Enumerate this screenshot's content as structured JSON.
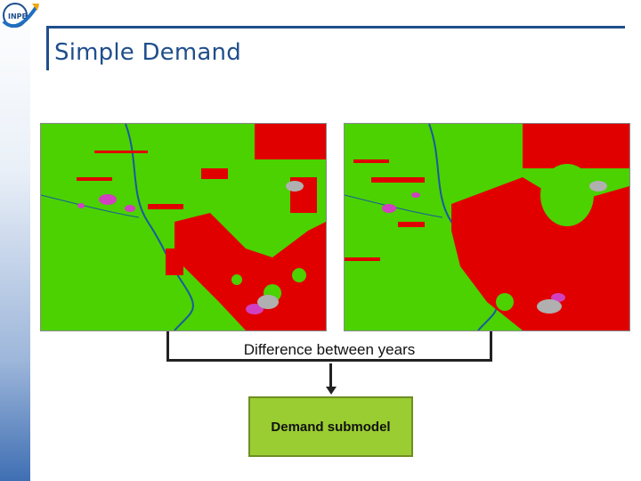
{
  "slide": {
    "title": "Simple Demand",
    "logo_icon": "inpe-logo-icon"
  },
  "diagram": {
    "maps": [
      {
        "name": "land-use-map-earlier-year",
        "icon": "land-cover-map"
      },
      {
        "name": "land-use-map-later-year",
        "icon": "land-cover-map"
      }
    ],
    "connector_label": "Difference between years",
    "submodel_label": "Demand submodel"
  },
  "colors": {
    "title": "#1f4e8c",
    "forest": "#4bd200",
    "deforestation": "#e00000",
    "river": "#1a5aa0",
    "cloud": "#d040c0",
    "submodel_fill": "#9acd32"
  }
}
